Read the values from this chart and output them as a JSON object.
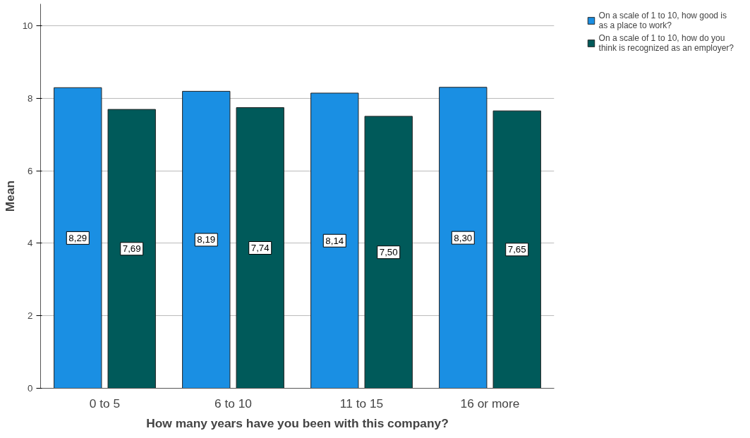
{
  "chart_data": {
    "type": "bar",
    "xlabel": "How many years have you been with this company?",
    "ylabel": "Mean",
    "categories": [
      "0 to 5",
      "6 to 10",
      "11 to 15",
      "16 or more"
    ],
    "series": [
      {
        "name": "On a scale of 1 to 10, how good is as a place to work?",
        "color": "#1a8fe3",
        "values": [
          8.29,
          8.19,
          8.14,
          8.3
        ],
        "value_labels": [
          "8,29",
          "8,19",
          "8,14",
          "8,30"
        ]
      },
      {
        "name": "On a scale of 1 to 10, how do you think is recognized as an employer?",
        "color": "#005a5a",
        "values": [
          7.69,
          7.74,
          7.5,
          7.65
        ],
        "value_labels": [
          "7,69",
          "7,74",
          "7,50",
          "7,65"
        ]
      }
    ],
    "ylim": [
      0,
      10.6
    ],
    "yticks": [
      0,
      2,
      4,
      6,
      8,
      10
    ],
    "grid": "y",
    "legend": "top right"
  }
}
